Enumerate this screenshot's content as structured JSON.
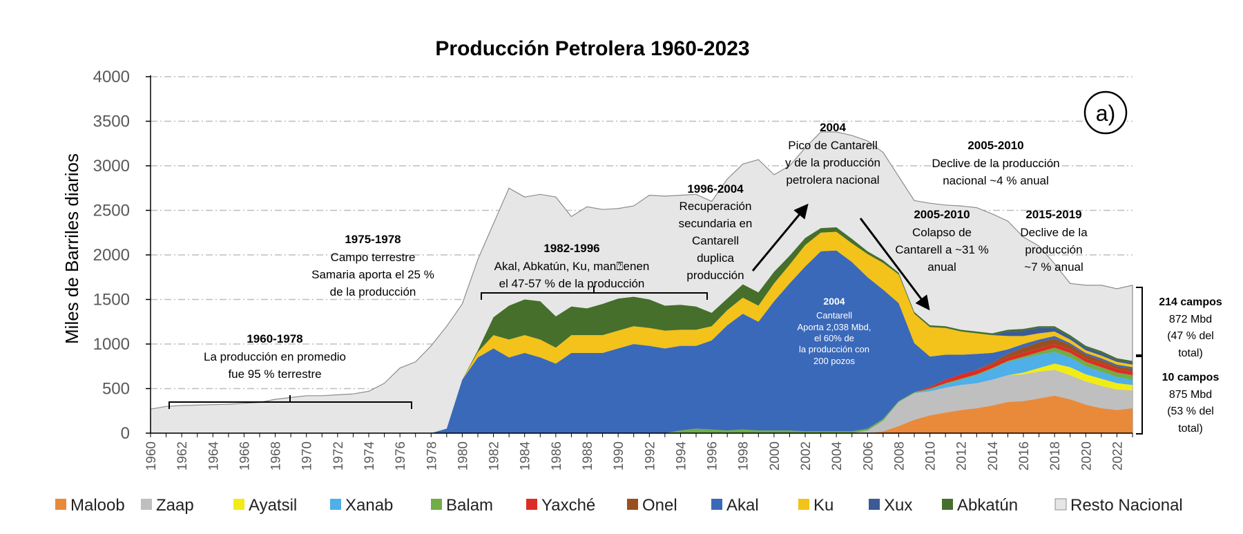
{
  "chart_data": {
    "type": "area",
    "title": "Producción Petrolera 1960-2023",
    "xlabel": "",
    "ylabel": "Miles de Barriles diarios",
    "ylim": [
      0,
      4000
    ],
    "yticks": [
      "0",
      "500",
      "1000",
      "1500",
      "2000",
      "2500",
      "3000",
      "3500",
      "4000"
    ],
    "xticks": [
      "1960",
      "1962",
      "1964",
      "1966",
      "1968",
      "1970",
      "1972",
      "1974",
      "1976",
      "1978",
      "1980",
      "1982",
      "1984",
      "1986",
      "1988",
      "1990",
      "1992",
      "1994",
      "1996",
      "1998",
      "2000",
      "2002",
      "2004",
      "2006",
      "2008",
      "2010",
      "2012",
      "2014",
      "2016",
      "2018",
      "2020",
      "2022"
    ],
    "grid": "horizontal dash-dot",
    "panel_label": "a)",
    "legend_position": "bottom",
    "colors": {
      "Maloob": "#e98a3b",
      "Zaap": "#bfbfbf",
      "Ayatsil": "#f2ec16",
      "Xanab": "#4fafe8",
      "Balam": "#70ad47",
      "Yaxché": "#dd2c25",
      "Onel": "#9c4f1e",
      "Akal": "#3a69b9",
      "Ku": "#f3c21b",
      "Xux": "#3b5a96",
      "Abkatún": "#456f2b",
      "Resto Nacional": "#e6e6e6"
    },
    "legend": [
      "Maloob",
      "Zaap",
      "Ayatsil",
      "Xanab",
      "Balam",
      "Yaxché",
      "Onel",
      "Akal",
      "Ku",
      "Xux",
      "Abkatún",
      "Resto Nacional"
    ],
    "annotations": {
      "a1960": {
        "year": "1960-1978",
        "lines": [
          "La producción en promedio",
          "fue 95 % terrestre"
        ]
      },
      "a1975": {
        "year": "1975-1978",
        "lines": [
          "Campo terrestre",
          "Samaria aporta el 25 %",
          "de la producción"
        ]
      },
      "a1982": {
        "year": "1982-1996",
        "lines": [
          "Akal, Abkatún, Ku, man⍰enen",
          "el  47-57 % de la producción"
        ]
      },
      "a1996": {
        "year": "1996-2004",
        "lines": [
          "Recuperación",
          "secundaria en",
          "Cantarell",
          "duplica",
          "producción"
        ]
      },
      "a2004": {
        "year": "2004",
        "lines": [
          "Pico de Cantarell",
          "y de la producción",
          "petrolera nacional"
        ]
      },
      "a2005a": {
        "year": "2005-2010",
        "lines": [
          "Declive de la producción",
          "nacional ~4 % anual"
        ]
      },
      "a2005b": {
        "year": "2005-2010",
        "lines": [
          "Colapso de",
          "Cantarell a ~31 %",
          "anual"
        ]
      },
      "a2015": {
        "year": "2015-2019",
        "lines": [
          "Declive de la",
          "producción",
          "~7 % anual"
        ]
      },
      "cantarell": {
        "year": "2004",
        "lines": [
          "Cantarell",
          "Aporta  2,038 Mbd,",
          "el 60% de",
          "la producción con",
          "200 pozos"
        ]
      }
    },
    "side_labels": {
      "top": {
        "title": "214 campos",
        "lines": [
          "872 Mbd",
          "(47 % del",
          "total)"
        ]
      },
      "bottom": {
        "title": "10 campos",
        "lines": [
          "875 Mbd",
          "(53 % del",
          "total)"
        ]
      }
    },
    "years": [
      1960,
      1961,
      1962,
      1963,
      1964,
      1965,
      1966,
      1967,
      1968,
      1969,
      1970,
      1971,
      1972,
      1973,
      1974,
      1975,
      1976,
      1977,
      1978,
      1979,
      1980,
      1981,
      1982,
      1983,
      1984,
      1985,
      1986,
      1987,
      1988,
      1989,
      1990,
      1991,
      1992,
      1993,
      1994,
      1995,
      1996,
      1997,
      1998,
      1999,
      2000,
      2001,
      2002,
      2003,
      2004,
      2005,
      2006,
      2007,
      2008,
      2009,
      2010,
      2011,
      2012,
      2013,
      2014,
      2015,
      2016,
      2017,
      2018,
      2019,
      2020,
      2021,
      2022,
      2023
    ],
    "total": [
      270,
      300,
      310,
      315,
      320,
      325,
      335,
      345,
      380,
      400,
      420,
      420,
      430,
      440,
      470,
      560,
      730,
      800,
      980,
      1200,
      1450,
      1950,
      2350,
      2750,
      2650,
      2680,
      2650,
      2430,
      2540,
      2510,
      2520,
      2550,
      2670,
      2660,
      2670,
      2680,
      2600,
      2850,
      3020,
      3070,
      2900,
      3000,
      3200,
      3380,
      3380,
      3340,
      3280,
      3150,
      2880,
      2610,
      2580,
      2560,
      2550,
      2530,
      2460,
      2380,
      2200,
      2100,
      1900,
      1680,
      1660,
      1660,
      1620,
      1660
    ],
    "series": [
      {
        "name": "Maloob",
        "values": [
          0,
          0,
          0,
          0,
          0,
          0,
          0,
          0,
          0,
          0,
          0,
          0,
          0,
          0,
          0,
          0,
          0,
          0,
          0,
          0,
          0,
          0,
          0,
          0,
          0,
          0,
          0,
          0,
          0,
          0,
          0,
          0,
          0,
          0,
          0,
          0,
          0,
          0,
          0,
          0,
          0,
          0,
          0,
          0,
          0,
          0,
          0,
          20,
          80,
          150,
          200,
          230,
          260,
          280,
          310,
          350,
          360,
          390,
          420,
          380,
          320,
          280,
          260,
          280
        ]
      },
      {
        "name": "Zaap",
        "values": [
          0,
          0,
          0,
          0,
          0,
          0,
          0,
          0,
          0,
          0,
          0,
          0,
          0,
          0,
          0,
          0,
          0,
          0,
          0,
          0,
          0,
          0,
          0,
          0,
          0,
          0,
          0,
          0,
          0,
          0,
          0,
          0,
          0,
          0,
          0,
          0,
          0,
          0,
          0,
          0,
          0,
          0,
          0,
          0,
          0,
          0,
          30,
          120,
          270,
          300,
          270,
          280,
          280,
          280,
          290,
          300,
          300,
          300,
          290,
          270,
          260,
          250,
          230,
          200
        ]
      },
      {
        "name": "Ayatsil",
        "values": [
          0,
          0,
          0,
          0,
          0,
          0,
          0,
          0,
          0,
          0,
          0,
          0,
          0,
          0,
          0,
          0,
          0,
          0,
          0,
          0,
          0,
          0,
          0,
          0,
          0,
          0,
          0,
          0,
          0,
          0,
          0,
          0,
          0,
          0,
          0,
          0,
          0,
          0,
          0,
          0,
          0,
          0,
          0,
          0,
          0,
          0,
          0,
          0,
          0,
          0,
          0,
          0,
          0,
          0,
          0,
          0,
          20,
          40,
          70,
          90,
          80,
          80,
          70,
          60
        ]
      },
      {
        "name": "Xanab",
        "values": [
          0,
          0,
          0,
          0,
          0,
          0,
          0,
          0,
          0,
          0,
          0,
          0,
          0,
          0,
          0,
          0,
          0,
          0,
          0,
          0,
          0,
          0,
          0,
          0,
          0,
          0,
          0,
          0,
          0,
          0,
          0,
          0,
          0,
          0,
          0,
          0,
          0,
          0,
          0,
          0,
          0,
          0,
          0,
          0,
          0,
          0,
          0,
          0,
          0,
          0,
          20,
          40,
          60,
          90,
          120,
          150,
          160,
          150,
          130,
          110,
          90,
          80,
          70,
          60
        ]
      },
      {
        "name": "Balam",
        "values": [
          0,
          0,
          0,
          0,
          0,
          0,
          0,
          0,
          0,
          0,
          0,
          0,
          0,
          0,
          0,
          0,
          0,
          0,
          0,
          0,
          0,
          0,
          0,
          0,
          0,
          0,
          0,
          0,
          0,
          0,
          0,
          0,
          0,
          0,
          30,
          50,
          40,
          30,
          40,
          30,
          30,
          30,
          20,
          20,
          20,
          20,
          20,
          20,
          10,
          10,
          10,
          10,
          10,
          10,
          10,
          10,
          20,
          30,
          50,
          50,
          50,
          50,
          50,
          50
        ]
      },
      {
        "name": "Yaxché",
        "values": [
          0,
          0,
          0,
          0,
          0,
          0,
          0,
          0,
          0,
          0,
          0,
          0,
          0,
          0,
          0,
          0,
          0,
          0,
          0,
          0,
          0,
          0,
          0,
          0,
          0,
          0,
          0,
          0,
          0,
          0,
          0,
          0,
          0,
          0,
          0,
          0,
          0,
          0,
          0,
          0,
          0,
          0,
          0,
          0,
          0,
          0,
          0,
          0,
          0,
          0,
          20,
          40,
          50,
          50,
          40,
          40,
          40,
          40,
          40,
          40,
          40,
          40,
          40,
          40
        ]
      },
      {
        "name": "Onel",
        "values": [
          0,
          0,
          0,
          0,
          0,
          0,
          0,
          0,
          0,
          0,
          0,
          0,
          0,
          0,
          0,
          0,
          0,
          0,
          0,
          0,
          0,
          0,
          0,
          0,
          0,
          0,
          0,
          0,
          0,
          0,
          0,
          0,
          0,
          0,
          0,
          0,
          0,
          0,
          0,
          0,
          0,
          0,
          0,
          0,
          0,
          0,
          0,
          0,
          0,
          0,
          0,
          0,
          0,
          0,
          20,
          40,
          60,
          70,
          60,
          50,
          40,
          40,
          30,
          30
        ]
      },
      {
        "name": "Akal",
        "values": [
          0,
          0,
          0,
          0,
          0,
          0,
          0,
          0,
          0,
          0,
          0,
          0,
          0,
          0,
          0,
          0,
          0,
          0,
          0,
          50,
          600,
          850,
          950,
          850,
          900,
          850,
          780,
          900,
          900,
          900,
          950,
          1000,
          980,
          950,
          950,
          930,
          1000,
          1180,
          1300,
          1220,
          1450,
          1650,
          1850,
          2020,
          2030,
          1900,
          1700,
          1450,
          1100,
          550,
          340,
          280,
          220,
          180,
          110,
          50,
          40,
          30,
          30,
          20,
          20,
          20,
          20,
          20
        ]
      },
      {
        "name": "Ku",
        "values": [
          0,
          0,
          0,
          0,
          0,
          0,
          0,
          0,
          0,
          0,
          0,
          0,
          0,
          0,
          0,
          0,
          0,
          0,
          0,
          0,
          0,
          60,
          150,
          200,
          200,
          200,
          180,
          200,
          200,
          200,
          200,
          200,
          200,
          200,
          180,
          180,
          160,
          170,
          180,
          180,
          200,
          210,
          240,
          210,
          210,
          210,
          260,
          300,
          320,
          330,
          330,
          300,
          260,
          230,
          200,
          150,
          90,
          70,
          50,
          40,
          30,
          30,
          30,
          30
        ]
      },
      {
        "name": "Xux",
        "values": [
          0,
          0,
          0,
          0,
          0,
          0,
          0,
          0,
          0,
          0,
          0,
          0,
          0,
          0,
          0,
          0,
          0,
          0,
          0,
          0,
          0,
          0,
          0,
          0,
          0,
          0,
          0,
          0,
          0,
          0,
          0,
          0,
          0,
          0,
          0,
          0,
          0,
          0,
          0,
          0,
          0,
          0,
          0,
          0,
          0,
          0,
          0,
          0,
          0,
          0,
          0,
          0,
          0,
          0,
          0,
          50,
          60,
          60,
          40,
          30,
          30,
          30,
          20,
          20
        ]
      },
      {
        "name": "Abkatún",
        "values": [
          0,
          0,
          0,
          0,
          0,
          0,
          0,
          0,
          0,
          0,
          0,
          0,
          0,
          0,
          0,
          0,
          0,
          0,
          0,
          0,
          0,
          20,
          200,
          380,
          400,
          430,
          350,
          320,
          300,
          350,
          360,
          330,
          320,
          280,
          280,
          260,
          150,
          130,
          150,
          150,
          130,
          100,
          80,
          50,
          50,
          50,
          30,
          30,
          20,
          20,
          20,
          20,
          20,
          20,
          20,
          20,
          20,
          20,
          20,
          20,
          20,
          20,
          20,
          20
        ]
      }
    ]
  }
}
